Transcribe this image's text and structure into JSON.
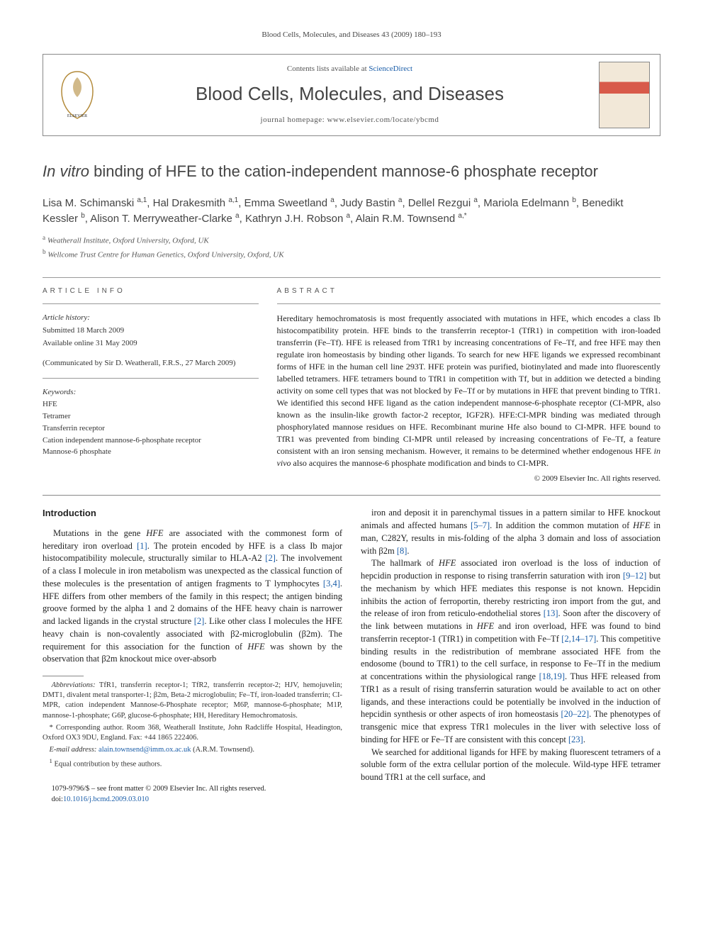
{
  "running_head": "Blood Cells, Molecules, and Diseases 43 (2009) 180–193",
  "masthead": {
    "contents_prefix": "Contents lists available at ",
    "contents_link": "ScienceDirect",
    "journal": "Blood Cells, Molecules, and Diseases",
    "homepage_prefix": "journal homepage: ",
    "homepage": "www.elsevier.com/locate/ybcmd"
  },
  "title_pre": "In vitro",
  "title_post": " binding of HFE to the cation-independent mannose-6 phosphate receptor",
  "authors_html": "Lisa M. Schimanski <sup>a,1</sup>, Hal Drakesmith <sup>a,1</sup>, Emma Sweetland <sup>a</sup>, Judy Bastin <sup>a</sup>, Dellel Rezgui <sup>a</sup>, Mariola Edelmann <sup>b</sup>, Benedikt Kessler <sup>b</sup>, Alison T. Merryweather-Clarke <sup>a</sup>, Kathryn J.H. Robson <sup>a</sup>, Alain R.M. Townsend <sup>a,*</sup>",
  "affils": {
    "a": "Weatherall Institute, Oxford University, Oxford, UK",
    "b": "Wellcome Trust Centre for Human Genetics, Oxford University, Oxford, UK"
  },
  "info": {
    "heading": "ARTICLE INFO",
    "history_label": "Article history:",
    "submitted": "Submitted 18 March 2009",
    "online": "Available online 31 May 2009",
    "communicated": "(Communicated by Sir D. Weatherall, F.R.S., 27 March 2009)",
    "kw_label": "Keywords:",
    "keywords": [
      "HFE",
      "Tetramer",
      "Transferrin receptor",
      "Cation independent mannose-6-phosphate receptor",
      "Mannose-6 phosphate"
    ]
  },
  "abstract": {
    "heading": "ABSTRACT",
    "body": "Hereditary hemochromatosis is most frequently associated with mutations in HFE, which encodes a class Ib histocompatibility protein. HFE binds to the transferrin receptor-1 (TfR1) in competition with iron-loaded transferrin (Fe–Tf). HFE is released from TfR1 by increasing concentrations of Fe–Tf, and free HFE may then regulate iron homeostasis by binding other ligands. To search for new HFE ligands we expressed recombinant forms of HFE in the human cell line 293T. HFE protein was purified, biotinylated and made into fluorescently labelled tetramers. HFE tetramers bound to TfR1 in competition with Tf, but in addition we detected a binding activity on some cell types that was not blocked by Fe–Tf or by mutations in HFE that prevent binding to TfR1. We identified this second HFE ligand as the cation independent mannose-6-phosphate receptor (CI-MPR, also known as the insulin-like growth factor-2 receptor, IGF2R). HFE:CI-MPR binding was mediated through phosphorylated mannose residues on HFE. Recombinant murine Hfe also bound to CI-MPR. HFE bound to TfR1 was prevented from binding CI-MPR until released by increasing concentrations of Fe–Tf, a feature consistent with an iron sensing mechanism. However, it remains to be determined whether endogenous HFE in vivo also acquires the mannose-6 phosphate modification and binds to CI-MPR.",
    "copyright": "© 2009 Elsevier Inc. All rights reserved."
  },
  "body": {
    "intro_heading": "Introduction",
    "p1": "Mutations in the gene HFE are associated with the commonest form of hereditary iron overload [1]. The protein encoded by HFE is a class Ib major histocompatibility molecule, structurally similar to HLA-A2 [2]. The involvement of a class I molecule in iron metabolism was unexpected as the classical function of these molecules is the presentation of antigen fragments to T lymphocytes [3,4]. HFE differs from other members of the family in this respect; the antigen binding groove formed by the alpha 1 and 2 domains of the HFE heavy chain is narrower and lacked ligands in the crystal structure [2]. Like other class I molecules the HFE heavy chain is non-covalently associated with β2-microglobulin (β2m). The requirement for this association for the function of HFE was shown by the observation that β2m knockout mice over-absorb",
    "p2": "iron and deposit it in parenchymal tissues in a pattern similar to HFE knockout animals and affected humans [5–7]. In addition the common mutation of HFE in man, C282Y, results in mis-folding of the alpha 3 domain and loss of association with β2m [8].",
    "p3": "The hallmark of HFE associated iron overload is the loss of induction of hepcidin production in response to rising transferrin saturation with iron [9–12] but the mechanism by which HFE mediates this response is not known. Hepcidin inhibits the action of ferroportin, thereby restricting iron import from the gut, and the release of iron from reticulo-endothelial stores [13]. Soon after the discovery of the link between mutations in HFE and iron overload, HFE was found to bind transferrin receptor-1 (TfR1) in competition with Fe–Tf [2,14–17]. This competitive binding results in the redistribution of membrane associated HFE from the endosome (bound to TfR1) to the cell surface, in response to Fe–Tf in the medium at concentrations within the physiological range [18,19]. Thus HFE released from TfR1 as a result of rising transferrin saturation would be available to act on other ligands, and these interactions could be potentially be involved in the induction of hepcidin synthesis or other aspects of iron homeostasis [20–22]. The phenotypes of transgenic mice that express TfR1 molecules in the liver with selective loss of binding for HFE or Fe–Tf are consistent with this concept [23].",
    "p4": "We searched for additional ligands for HFE by making fluorescent tetramers of a soluble form of the extra cellular portion of the molecule. Wild-type HFE tetramer bound TfR1 at the cell surface, and"
  },
  "footnotes": {
    "abbr_label": "Abbreviations:",
    "abbr": " TfR1, transferrin receptor-1; TfR2, transferrin receptor-2; HJV, hemojuvelin; DMT1, divalent metal transporter-1; β2m, Beta-2 microglobulin; Fe–Tf, iron-loaded transferrin; CI-MPR, cation independent Mannose-6-Phosphate receptor; M6P, mannose-6-phosphate; M1P, mannose-1-phosphate; G6P, glucose-6-phosphate; HH, Hereditary Hemochromatosis.",
    "corr": "* Corresponding author. Room 368, Weatherall Institute, John Radcliffe Hospital, Headington, Oxford OX3 9DU, England. Fax: +44 1865 222406.",
    "email_label": "E-mail address:",
    "email": "alain.townsend@imm.ox.ac.uk",
    "email_who": " (A.R.M. Townsend).",
    "equal": "Equal contribution by these authors."
  },
  "doi": {
    "front": "1079-9796/$ – see front matter © 2009 Elsevier Inc. All rights reserved.",
    "doi_label": "doi:",
    "doi": "10.1016/j.bcmd.2009.03.010"
  },
  "refs": {
    "r1": "[1]",
    "r2": "[2]",
    "r34": "[3,4]",
    "r5_7": "[5–7]",
    "r8": "[8]",
    "r9_12": "[9–12]",
    "r13": "[13]",
    "r2_14_17": "[2,14–17]",
    "r18_19": "[18,19]",
    "r20_22": "[20–22]",
    "r23": "[23]"
  },
  "colors": {
    "link": "#1a5da8",
    "text": "#222222",
    "muted": "#555555",
    "rule": "#888888"
  }
}
